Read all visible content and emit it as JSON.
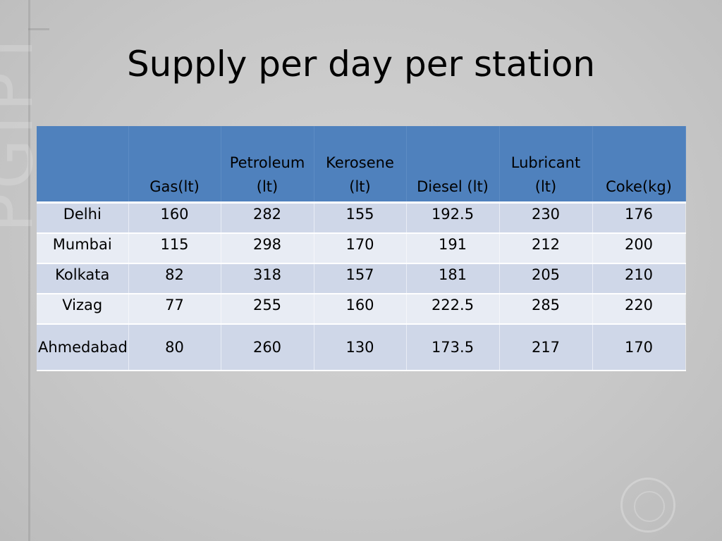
{
  "slide": {
    "title": "Supply per day per station"
  },
  "table": {
    "headers": [
      {
        "line1": "",
        "line2": ""
      },
      {
        "line1": "",
        "line2": "Gas(lt)"
      },
      {
        "line1": "Petroleum",
        "line2": "(lt)"
      },
      {
        "line1": "Kerosene",
        "line2": "(lt)"
      },
      {
        "line1": "",
        "line2": "Diesel (lt)"
      },
      {
        "line1": "Lubricant",
        "line2": "(lt)"
      },
      {
        "line1": "",
        "line2": "Coke(kg)"
      }
    ],
    "rows": [
      [
        "Delhi",
        "160",
        "282",
        "155",
        "192.5",
        "230",
        "176"
      ],
      [
        "Mumbai",
        "115",
        "298",
        "170",
        "191",
        "212",
        "200"
      ],
      [
        "Kolkata",
        "82",
        "318",
        "157",
        "181",
        "205",
        "210"
      ],
      [
        "Vizag",
        "77",
        "255",
        "160",
        "222.5",
        "285",
        "220"
      ],
      [
        "Ahmedabad",
        "80",
        "260",
        "130",
        "173.5",
        "217",
        "170"
      ]
    ]
  },
  "background": {
    "watermark": "PGIPT",
    "header_color": "#4f81bd",
    "row_odd_color": "#cfd7e8",
    "row_even_color": "#e8ecf4"
  }
}
